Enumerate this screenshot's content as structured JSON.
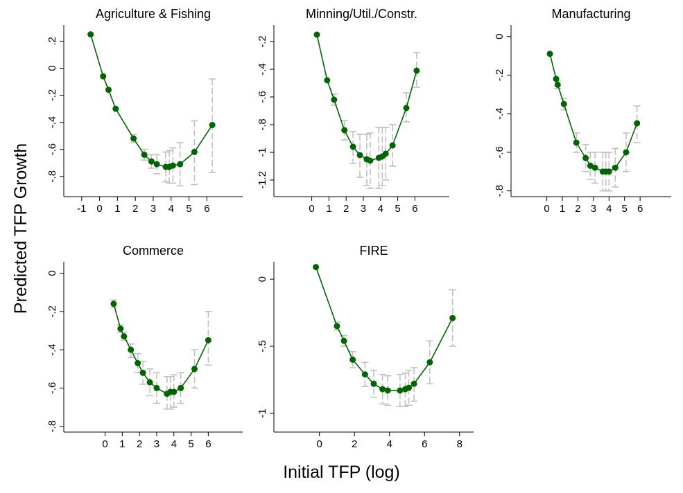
{
  "figure": {
    "ylabel": "Predicted TFP Growth",
    "xlabel": "Initial TFP (log)"
  },
  "colors": {
    "series": "#006400",
    "error_bars": "#c0c0c0",
    "axes": "#000000"
  },
  "chart_data": [
    {
      "type": "line",
      "title": "Agriculture & Fishing",
      "xlim": [
        -2,
        8
      ],
      "ylim": [
        -0.95,
        0.32
      ],
      "xticks": [
        -1,
        0,
        1,
        2,
        3,
        4,
        5,
        6
      ],
      "yticks": [
        0.2,
        0,
        -0.2,
        -0.4,
        -0.6,
        -0.8
      ],
      "yticklabels": [
        ".2",
        "0",
        "-.2",
        "-.4",
        "-.6",
        "-.8"
      ],
      "x": [
        -0.5,
        0.2,
        0.5,
        0.9,
        1.9,
        2.5,
        2.9,
        3.2,
        3.7,
        3.9,
        4.1,
        4.5,
        5.3,
        6.3
      ],
      "y": [
        0.25,
        -0.06,
        -0.16,
        -0.3,
        -0.52,
        -0.64,
        -0.69,
        -0.71,
        -0.73,
        -0.73,
        -0.72,
        -0.71,
        -0.62,
        -0.42
      ],
      "err_low": [
        0.25,
        -0.06,
        -0.16,
        -0.3,
        -0.55,
        -0.68,
        -0.74,
        -0.78,
        -0.84,
        -0.85,
        -0.85,
        -0.87,
        -0.86,
        -0.77
      ],
      "err_high": [
        0.25,
        -0.06,
        -0.16,
        -0.3,
        -0.49,
        -0.6,
        -0.64,
        -0.64,
        -0.62,
        -0.61,
        -0.59,
        -0.55,
        -0.39,
        -0.08
      ]
    },
    {
      "type": "line",
      "title": "Minning/Util./Constr.",
      "xlim": [
        -2.2,
        8
      ],
      "ylim": [
        -1.32,
        -0.08
      ],
      "xticks": [
        0,
        1,
        2,
        3,
        4,
        5,
        6
      ],
      "yticks": [
        -0.2,
        -0.4,
        -0.6,
        -0.8,
        -1,
        -1.2
      ],
      "yticklabels": [
        "-.2",
        "-.4",
        "-.6",
        "-.8",
        "-1",
        "-1.2"
      ],
      "x": [
        0.3,
        0.9,
        1.3,
        1.9,
        2.4,
        2.8,
        3.2,
        3.4,
        3.9,
        4.1,
        4.3,
        4.7,
        5.5,
        6.1
      ],
      "y": [
        -0.15,
        -0.48,
        -0.62,
        -0.84,
        -0.96,
        -1.02,
        -1.05,
        -1.06,
        -1.04,
        -1.03,
        -1.01,
        -0.95,
        -0.68,
        -0.41
      ],
      "err_low": [
        -0.15,
        -0.48,
        -0.66,
        -0.91,
        -1.08,
        -1.18,
        -1.24,
        -1.26,
        -1.26,
        -1.24,
        -1.2,
        -1.1,
        -0.78,
        -0.53
      ],
      "err_high": [
        -0.15,
        -0.48,
        -0.58,
        -0.77,
        -0.85,
        -0.87,
        -0.87,
        -0.86,
        -0.82,
        -0.82,
        -0.82,
        -0.8,
        -0.57,
        -0.28
      ]
    },
    {
      "type": "line",
      "title": "Manufacturing",
      "xlim": [
        -2.3,
        8
      ],
      "ylim": [
        -0.83,
        0.06
      ],
      "xticks": [
        0,
        1,
        2,
        3,
        4,
        5,
        6
      ],
      "yticks": [
        0,
        -0.2,
        -0.4,
        -0.6,
        -0.8
      ],
      "yticklabels": [
        "0",
        "-.2",
        "-.4",
        "-.6",
        "-.8"
      ],
      "x": [
        0.2,
        0.6,
        0.7,
        1.1,
        1.9,
        2.5,
        2.8,
        3.1,
        3.6,
        3.8,
        4.0,
        4.4,
        5.1,
        5.8
      ],
      "y": [
        -0.09,
        -0.22,
        -0.25,
        -0.35,
        -0.55,
        -0.63,
        -0.67,
        -0.68,
        -0.7,
        -0.7,
        -0.7,
        -0.68,
        -0.6,
        -0.45
      ],
      "err_low": [
        -0.09,
        -0.22,
        -0.27,
        -0.38,
        -0.6,
        -0.7,
        -0.74,
        -0.76,
        -0.8,
        -0.8,
        -0.8,
        -0.78,
        -0.7,
        -0.55
      ],
      "err_high": [
        -0.09,
        -0.22,
        -0.23,
        -0.32,
        -0.5,
        -0.56,
        -0.6,
        -0.6,
        -0.6,
        -0.6,
        -0.6,
        -0.58,
        -0.5,
        -0.36
      ]
    },
    {
      "type": "line",
      "title": "Commerce",
      "xlim": [
        -2.4,
        8
      ],
      "ylim": [
        -0.83,
        0.06
      ],
      "xticks": [
        0,
        1,
        2,
        3,
        4,
        5,
        6
      ],
      "yticks": [
        0,
        -0.2,
        -0.4,
        -0.6,
        -0.8
      ],
      "yticklabels": [
        "0",
        "-.2",
        "-.4",
        "-.6",
        "-.8"
      ],
      "x": [
        0.5,
        0.9,
        1.1,
        1.5,
        1.9,
        2.2,
        2.6,
        3.0,
        3.6,
        3.8,
        4.0,
        4.4,
        5.2,
        6.0
      ],
      "y": [
        -0.16,
        -0.29,
        -0.33,
        -0.4,
        -0.47,
        -0.52,
        -0.57,
        -0.6,
        -0.63,
        -0.62,
        -0.62,
        -0.6,
        -0.5,
        -0.35
      ],
      "err_low": [
        -0.18,
        -0.31,
        -0.35,
        -0.44,
        -0.52,
        -0.58,
        -0.64,
        -0.68,
        -0.71,
        -0.71,
        -0.7,
        -0.68,
        -0.6,
        -0.48
      ],
      "err_high": [
        -0.14,
        -0.27,
        -0.31,
        -0.37,
        -0.42,
        -0.46,
        -0.5,
        -0.52,
        -0.54,
        -0.54,
        -0.53,
        -0.52,
        -0.4,
        -0.2
      ]
    },
    {
      "type": "line",
      "title": "FIRE",
      "xlim": [
        -2.6,
        8.8
      ],
      "ylim": [
        -1.14,
        0.13
      ],
      "xticks": [
        0,
        2,
        4,
        6,
        8
      ],
      "yticks": [
        0,
        -0.5,
        -1
      ],
      "yticklabels": [
        "0",
        "-.5",
        "-1"
      ],
      "x": [
        -0.2,
        1.0,
        1.4,
        1.9,
        2.6,
        3.1,
        3.6,
        3.9,
        4.6,
        4.9,
        5.1,
        5.4,
        6.3,
        7.6
      ],
      "y": [
        0.09,
        -0.35,
        -0.46,
        -0.6,
        -0.71,
        -0.78,
        -0.82,
        -0.83,
        -0.83,
        -0.82,
        -0.81,
        -0.78,
        -0.62,
        -0.29
      ],
      "err_low": [
        0.09,
        -0.38,
        -0.5,
        -0.66,
        -0.8,
        -0.88,
        -0.93,
        -0.94,
        -0.95,
        -0.95,
        -0.94,
        -0.91,
        -0.78,
        -0.5
      ],
      "err_high": [
        0.09,
        -0.32,
        -0.42,
        -0.54,
        -0.62,
        -0.68,
        -0.71,
        -0.72,
        -0.71,
        -0.7,
        -0.68,
        -0.66,
        -0.46,
        -0.08
      ]
    }
  ]
}
